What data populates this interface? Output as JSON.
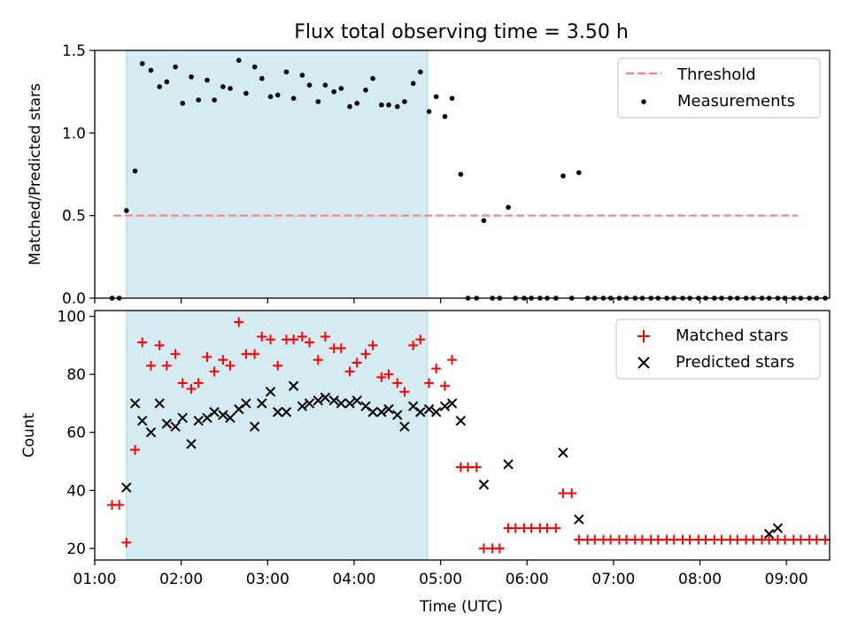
{
  "figure": {
    "title": "Flux total observing time = 3.50 h",
    "xlabel": "Time (UTC)"
  },
  "chart_data": [
    {
      "type": "scatter",
      "ylabel": "Matched/Predicted stars",
      "xlim": [
        "01:00",
        "09:30"
      ],
      "ylim": [
        0,
        1.5
      ],
      "yticks": [
        0.0,
        0.5,
        1.0,
        1.5
      ],
      "ytick_labels": [
        "0.0",
        "0.5",
        "1.0",
        "1.5"
      ],
      "shaded_interval": [
        "01:22",
        "04:51"
      ],
      "shade_color": "#add8e6",
      "legend_position": "top-right",
      "threshold": {
        "name": "Threshold",
        "value": 0.5,
        "x_range": [
          "01:13",
          "09:08"
        ],
        "color": "#ff7f7f",
        "style": "dashed"
      },
      "series": [
        {
          "name": "Measurements",
          "color": "#000000",
          "marker": "dot",
          "points": [
            [
              "01:12",
              0
            ],
            [
              "01:17",
              0
            ],
            [
              "01:22",
              0.53
            ],
            [
              "01:28",
              0.77
            ],
            [
              "01:33",
              1.42
            ],
            [
              "01:39",
              1.38
            ],
            [
              "01:45",
              1.28
            ],
            [
              "01:50",
              1.31
            ],
            [
              "01:56",
              1.4
            ],
            [
              "02:01",
              1.18
            ],
            [
              "02:07",
              1.34
            ],
            [
              "02:12",
              1.2
            ],
            [
              "02:18",
              1.32
            ],
            [
              "02:23",
              1.2
            ],
            [
              "02:29",
              1.28
            ],
            [
              "02:34",
              1.27
            ],
            [
              "02:40",
              1.44
            ],
            [
              "02:45",
              1.24
            ],
            [
              "02:51",
              1.4
            ],
            [
              "02:56",
              1.33
            ],
            [
              "03:02",
              1.22
            ],
            [
              "03:07",
              1.23
            ],
            [
              "03:13",
              1.37
            ],
            [
              "03:18",
              1.21
            ],
            [
              "03:24",
              1.35
            ],
            [
              "03:29",
              1.29
            ],
            [
              "03:35",
              1.19
            ],
            [
              "03:40",
              1.29
            ],
            [
              "03:46",
              1.25
            ],
            [
              "03:51",
              1.27
            ],
            [
              "03:57",
              1.16
            ],
            [
              "04:02",
              1.18
            ],
            [
              "04:08",
              1.26
            ],
            [
              "04:13",
              1.33
            ],
            [
              "04:19",
              1.17
            ],
            [
              "04:24",
              1.17
            ],
            [
              "04:30",
              1.16
            ],
            [
              "04:35",
              1.19
            ],
            [
              "04:41",
              1.3
            ],
            [
              "04:46",
              1.37
            ],
            [
              "04:52",
              1.13
            ],
            [
              "04:57",
              1.22
            ],
            [
              "05:03",
              1.1
            ],
            [
              "05:08",
              1.21
            ],
            [
              "05:14",
              0.75
            ],
            [
              "05:19",
              0
            ],
            [
              "05:25",
              0
            ],
            [
              "05:30",
              0.47
            ],
            [
              "05:36",
              0
            ],
            [
              "05:41",
              0
            ],
            [
              "05:47",
              0.55
            ],
            [
              "05:52",
              0
            ],
            [
              "05:58",
              0
            ],
            [
              "06:03",
              0
            ],
            [
              "06:09",
              0
            ],
            [
              "06:14",
              0
            ],
            [
              "06:20",
              0
            ],
            [
              "06:25",
              0.74
            ],
            [
              "06:31",
              0
            ],
            [
              "06:36",
              0.76
            ],
            [
              "06:42",
              0
            ],
            [
              "06:47",
              0
            ],
            [
              "06:53",
              0
            ],
            [
              "06:58",
              0
            ],
            [
              "07:04",
              0
            ],
            [
              "07:09",
              0
            ],
            [
              "07:15",
              0
            ],
            [
              "07:20",
              0
            ],
            [
              "07:26",
              0
            ],
            [
              "07:31",
              0
            ],
            [
              "07:37",
              0
            ],
            [
              "07:42",
              0
            ],
            [
              "07:48",
              0
            ],
            [
              "07:53",
              0
            ],
            [
              "07:59",
              0
            ],
            [
              "08:04",
              0
            ],
            [
              "08:10",
              0
            ],
            [
              "08:15",
              0
            ],
            [
              "08:21",
              0
            ],
            [
              "08:26",
              0
            ],
            [
              "08:32",
              0
            ],
            [
              "08:37",
              0
            ],
            [
              "08:43",
              0
            ],
            [
              "08:48",
              0
            ],
            [
              "08:54",
              0
            ],
            [
              "08:59",
              0
            ],
            [
              "09:05",
              0
            ],
            [
              "09:10",
              0
            ],
            [
              "09:16",
              0
            ],
            [
              "09:21",
              0
            ],
            [
              "09:27",
              0
            ]
          ]
        }
      ]
    },
    {
      "type": "scatter",
      "ylabel": "Count",
      "xlim": [
        "01:00",
        "09:30"
      ],
      "ylim": [
        16,
        102
      ],
      "yticks": [
        20,
        40,
        60,
        80,
        100
      ],
      "ytick_labels": [
        "20",
        "40",
        "60",
        "80",
        "100"
      ],
      "xticks": [
        "01:00",
        "02:00",
        "03:00",
        "04:00",
        "05:00",
        "06:00",
        "07:00",
        "08:00",
        "09:00"
      ],
      "shaded_interval": [
        "01:22",
        "04:51"
      ],
      "shade_color": "#add8e6",
      "legend_position": "top-right",
      "series": [
        {
          "name": "Matched stars",
          "color": "#ff0000",
          "marker": "plus",
          "points": [
            [
              "01:12",
              35
            ],
            [
              "01:17",
              35
            ],
            [
              "01:22",
              22
            ],
            [
              "01:28",
              54
            ],
            [
              "01:33",
              91
            ],
            [
              "01:39",
              83
            ],
            [
              "01:45",
              90
            ],
            [
              "01:50",
              83
            ],
            [
              "01:56",
              87
            ],
            [
              "02:01",
              77
            ],
            [
              "02:07",
              75
            ],
            [
              "02:12",
              77
            ],
            [
              "02:18",
              86
            ],
            [
              "02:23",
              81
            ],
            [
              "02:29",
              85
            ],
            [
              "02:34",
              83
            ],
            [
              "02:40",
              98
            ],
            [
              "02:45",
              87
            ],
            [
              "02:51",
              87
            ],
            [
              "02:56",
              93
            ],
            [
              "03:02",
              92
            ],
            [
              "03:07",
              83
            ],
            [
              "03:13",
              92
            ],
            [
              "03:18",
              92
            ],
            [
              "03:24",
              93
            ],
            [
              "03:29",
              91
            ],
            [
              "03:35",
              85
            ],
            [
              "03:40",
              93
            ],
            [
              "03:46",
              89
            ],
            [
              "03:51",
              89
            ],
            [
              "03:57",
              81
            ],
            [
              "04:02",
              84
            ],
            [
              "04:08",
              87
            ],
            [
              "04:13",
              90
            ],
            [
              "04:19",
              79
            ],
            [
              "04:24",
              80
            ],
            [
              "04:30",
              77
            ],
            [
              "04:35",
              74
            ],
            [
              "04:41",
              90
            ],
            [
              "04:46",
              92
            ],
            [
              "04:52",
              77
            ],
            [
              "04:57",
              82
            ],
            [
              "05:03",
              76
            ],
            [
              "05:08",
              85
            ],
            [
              "05:14",
              48
            ],
            [
              "05:19",
              48
            ],
            [
              "05:25",
              48
            ],
            [
              "05:30",
              20
            ],
            [
              "05:36",
              20
            ],
            [
              "05:41",
              20
            ],
            [
              "05:47",
              27
            ],
            [
              "05:52",
              27
            ],
            [
              "05:58",
              27
            ],
            [
              "06:03",
              27
            ],
            [
              "06:09",
              27
            ],
            [
              "06:14",
              27
            ],
            [
              "06:20",
              27
            ],
            [
              "06:25",
              39
            ],
            [
              "06:31",
              39
            ],
            [
              "06:36",
              23
            ],
            [
              "06:42",
              23
            ],
            [
              "06:47",
              23
            ],
            [
              "06:53",
              23
            ],
            [
              "06:58",
              23
            ],
            [
              "07:04",
              23
            ],
            [
              "07:09",
              23
            ],
            [
              "07:15",
              23
            ],
            [
              "07:20",
              23
            ],
            [
              "07:26",
              23
            ],
            [
              "07:31",
              23
            ],
            [
              "07:37",
              23
            ],
            [
              "07:42",
              23
            ],
            [
              "07:48",
              23
            ],
            [
              "07:53",
              23
            ],
            [
              "07:59",
              23
            ],
            [
              "08:04",
              23
            ],
            [
              "08:10",
              23
            ],
            [
              "08:15",
              23
            ],
            [
              "08:21",
              23
            ],
            [
              "08:26",
              23
            ],
            [
              "08:32",
              23
            ],
            [
              "08:37",
              23
            ],
            [
              "08:43",
              23
            ],
            [
              "08:48",
              23
            ],
            [
              "08:54",
              23
            ],
            [
              "08:59",
              23
            ],
            [
              "09:05",
              23
            ],
            [
              "09:10",
              23
            ],
            [
              "09:16",
              23
            ],
            [
              "09:21",
              23
            ],
            [
              "09:27",
              23
            ]
          ]
        },
        {
          "name": "Predicted stars",
          "color": "#000000",
          "marker": "x",
          "points": [
            [
              "01:22",
              41
            ],
            [
              "01:28",
              70
            ],
            [
              "01:33",
              64
            ],
            [
              "01:39",
              60
            ],
            [
              "01:45",
              70
            ],
            [
              "01:50",
              63
            ],
            [
              "01:56",
              62
            ],
            [
              "02:01",
              65
            ],
            [
              "02:07",
              56
            ],
            [
              "02:12",
              64
            ],
            [
              "02:18",
              65
            ],
            [
              "02:23",
              67
            ],
            [
              "02:29",
              66
            ],
            [
              "02:34",
              65
            ],
            [
              "02:40",
              68
            ],
            [
              "02:45",
              70
            ],
            [
              "02:51",
              62
            ],
            [
              "02:56",
              70
            ],
            [
              "03:02",
              74
            ],
            [
              "03:07",
              67
            ],
            [
              "03:13",
              67
            ],
            [
              "03:18",
              76
            ],
            [
              "03:24",
              69
            ],
            [
              "03:29",
              70
            ],
            [
              "03:35",
              71
            ],
            [
              "03:40",
              72
            ],
            [
              "03:46",
              71
            ],
            [
              "03:51",
              70
            ],
            [
              "03:57",
              70
            ],
            [
              "04:02",
              71
            ],
            [
              "04:08",
              69
            ],
            [
              "04:13",
              67
            ],
            [
              "04:19",
              67
            ],
            [
              "04:24",
              68
            ],
            [
              "04:30",
              66
            ],
            [
              "04:35",
              62
            ],
            [
              "04:41",
              69
            ],
            [
              "04:46",
              67
            ],
            [
              "04:52",
              68
            ],
            [
              "04:57",
              67
            ],
            [
              "05:03",
              69
            ],
            [
              "05:08",
              70
            ],
            [
              "05:14",
              64
            ],
            [
              "05:30",
              42
            ],
            [
              "05:47",
              49
            ],
            [
              "06:25",
              53
            ],
            [
              "06:36",
              30
            ],
            [
              "08:48",
              25
            ],
            [
              "08:54",
              27
            ]
          ]
        }
      ]
    }
  ]
}
